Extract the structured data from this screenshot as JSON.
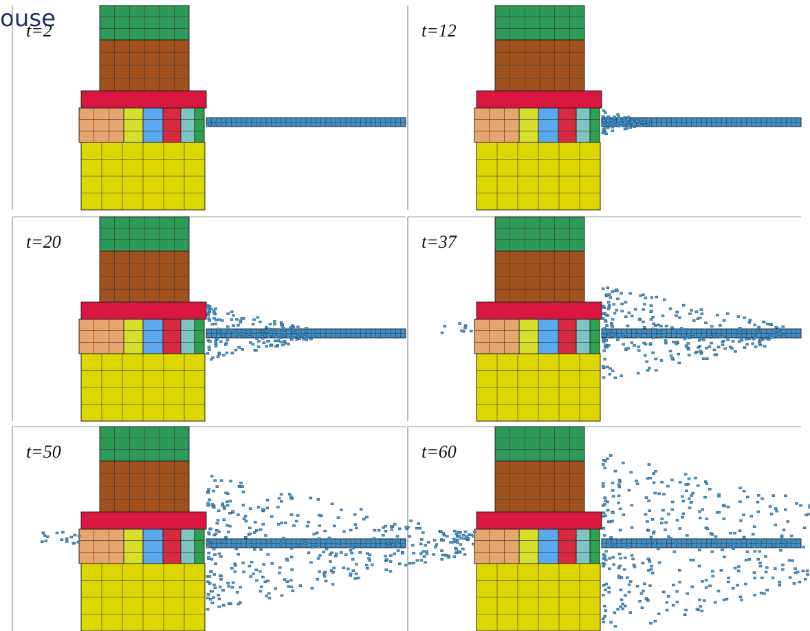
{
  "header": {
    "fragment": "ouse"
  },
  "panels": [
    {
      "label": "t=2"
    },
    {
      "label": "t=12"
    },
    {
      "label": "t=20"
    },
    {
      "label": "t=37"
    },
    {
      "label": "t=50"
    },
    {
      "label": "t=60"
    }
  ]
}
